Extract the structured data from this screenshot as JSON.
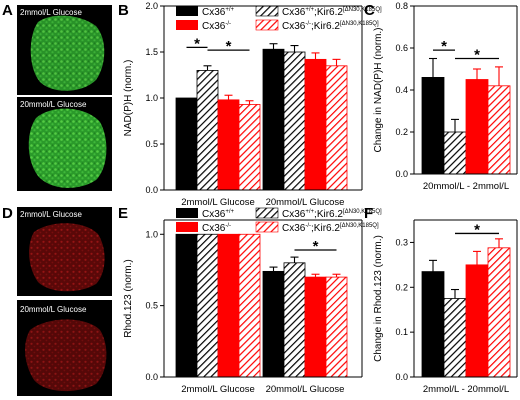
{
  "panel_letters": {
    "A": "A",
    "B": "B",
    "C": "C",
    "D": "D",
    "E": "E",
    "F": "F"
  },
  "micrographs": {
    "A_top": "2mmol/L Glucose",
    "A_bottom": "20mmol/L Glucose",
    "D_top": "2mmol/L Glucose",
    "D_bottom": "20mmol/L Glucose"
  },
  "legend": {
    "wt": "Cx36",
    "wt_sup": "+/+",
    "kir_wt": "Cx36",
    "kir_wt_sup": "+/+",
    "kir_wt_mid": ";Kir6.2",
    "kir_wt_sup2": "[ΔN30,K185Q]",
    "ko": "Cx36",
    "ko_sup": "-/-",
    "kir_ko": "Cx36",
    "kir_ko_sup": "-/-",
    "kir_ko_mid": ";Kir6.2",
    "kir_ko_sup2": "[ΔN30,K185Q]"
  },
  "colors": {
    "wt": "#000000",
    "ko": "#ff0000",
    "kir_wt_hatch": "#000000",
    "kir_ko_hatch": "#ff0000",
    "green_cell": "#2fae2f",
    "red_cell": "#b01515"
  },
  "chart_data": [
    {
      "panel": "B",
      "type": "bar",
      "ylabel": "NAD(P)H (norm.)",
      "ylim": [
        0.0,
        2.0
      ],
      "yticks": [
        "0.0",
        "0.5",
        "1.0",
        "1.5",
        "2.0"
      ],
      "categories": [
        "2mmol/L Glucose",
        "20mmol/L Glucose"
      ],
      "series": [
        {
          "name": "Cx36+/+",
          "values": [
            1.0,
            1.53
          ],
          "errors": [
            0.0,
            0.06
          ]
        },
        {
          "name": "Cx36+/+;Kir6.2[ΔN30,K185Q]",
          "values": [
            1.3,
            1.5
          ],
          "errors": [
            0.05,
            0.07
          ]
        },
        {
          "name": "Cx36-/-",
          "values": [
            0.98,
            1.42
          ],
          "errors": [
            0.05,
            0.07
          ]
        },
        {
          "name": "Cx36-/-;Kir6.2[ΔN30,K185Q]",
          "values": [
            0.93,
            1.35
          ],
          "errors": [
            0.04,
            0.07
          ]
        }
      ],
      "significance": [
        "*",
        "*"
      ]
    },
    {
      "panel": "C",
      "type": "bar",
      "ylabel": "Change in NAD(P)H (norm.)",
      "ylim": [
        0.0,
        0.8
      ],
      "yticks": [
        "0.0",
        "0.2",
        "0.4",
        "0.6",
        "0.8"
      ],
      "categories": [
        "20mmol/L - 2mmol/L"
      ],
      "series": [
        {
          "name": "Cx36+/+",
          "values": [
            0.46
          ],
          "errors": [
            0.09
          ]
        },
        {
          "name": "Cx36+/+;Kir6.2[ΔN30,K185Q]",
          "values": [
            0.2
          ],
          "errors": [
            0.06
          ]
        },
        {
          "name": "Cx36-/-",
          "values": [
            0.45
          ],
          "errors": [
            0.05
          ]
        },
        {
          "name": "Cx36-/-;Kir6.2[ΔN30,K185Q]",
          "values": [
            0.42
          ],
          "errors": [
            0.09
          ]
        }
      ],
      "significance": [
        "*",
        "*"
      ]
    },
    {
      "panel": "E",
      "type": "bar",
      "ylabel": "Rhod.123 (norm.)",
      "ylim": [
        0.0,
        1.1
      ],
      "yticks": [
        "0.0",
        "0.5",
        "1.0"
      ],
      "categories": [
        "2mmol/L Glucose",
        "20mmol/L Glucose"
      ],
      "series": [
        {
          "name": "Cx36+/+",
          "values": [
            1.0,
            0.74
          ],
          "errors": [
            0.0,
            0.03
          ]
        },
        {
          "name": "Cx36+/+;Kir6.2[ΔN30,K185Q]",
          "values": [
            1.0,
            0.8
          ],
          "errors": [
            0.0,
            0.04
          ]
        },
        {
          "name": "Cx36-/-",
          "values": [
            1.0,
            0.7
          ],
          "errors": [
            0.0,
            0.02
          ]
        },
        {
          "name": "Cx36-/-;Kir6.2[ΔN30,K185Q]",
          "values": [
            1.0,
            0.7
          ],
          "errors": [
            0.0,
            0.02
          ]
        }
      ],
      "significance": [
        "*"
      ]
    },
    {
      "panel": "F",
      "type": "bar",
      "ylabel": "Change in Rhod.123 (norm.)",
      "ylim": [
        0.0,
        0.35
      ],
      "yticks": [
        "0.0",
        "0.1",
        "0.2",
        "0.3"
      ],
      "categories": [
        "2mmol/L - 20mmol/L"
      ],
      "series": [
        {
          "name": "Cx36+/+",
          "values": [
            0.235
          ],
          "errors": [
            0.025
          ]
        },
        {
          "name": "Cx36+/+;Kir6.2[ΔN30,K185Q]",
          "values": [
            0.175
          ],
          "errors": [
            0.02
          ]
        },
        {
          "name": "Cx36-/-",
          "values": [
            0.25
          ],
          "errors": [
            0.03
          ]
        },
        {
          "name": "Cx36-/-;Kir6.2[ΔN30,K185Q]",
          "values": [
            0.288
          ],
          "errors": [
            0.02
          ]
        }
      ],
      "significance": [
        "*"
      ]
    }
  ]
}
